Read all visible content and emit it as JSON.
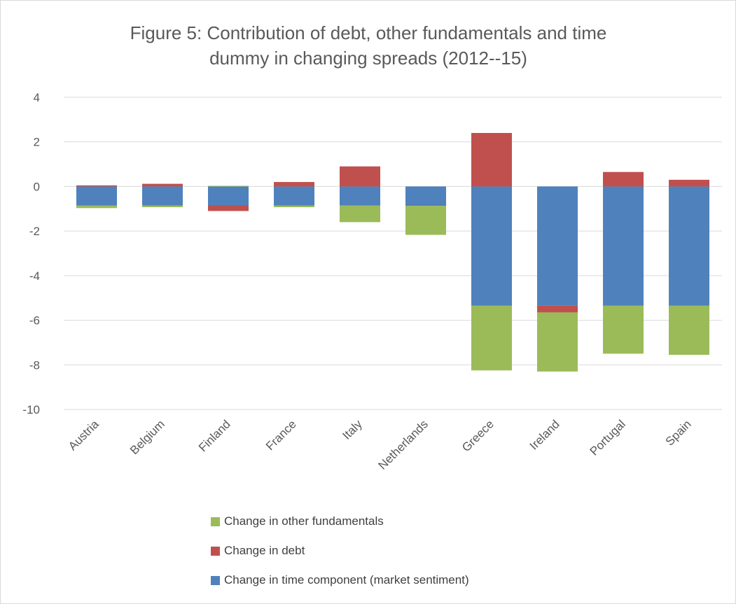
{
  "chart_data": {
    "type": "bar",
    "stacked": true,
    "title": "Figure 5: Contribution of debt, other fundamentals and time dummy in changing spreads (2012--15)",
    "title_lines": [
      "Figure 5: Contribution of debt, other fundamentals and time",
      "dummy in changing spreads (2012--15)"
    ],
    "categories": [
      "Austria",
      "Belgium",
      "Finland",
      "France",
      "Italy",
      "Netherlands",
      "Greece",
      "Ireland",
      "Portugal",
      "Spain"
    ],
    "series": [
      {
        "name": "Change in time component (market sentiment)",
        "color": "#4f81bd",
        "values": [
          -0.85,
          -0.85,
          -0.85,
          -0.85,
          -0.85,
          -0.85,
          -5.35,
          -5.35,
          -5.35,
          -5.35
        ]
      },
      {
        "name": "Change in debt",
        "color": "#c0504d",
        "values": [
          0.05,
          0.12,
          -0.25,
          0.2,
          0.9,
          -0.02,
          2.4,
          -0.3,
          0.65,
          0.3
        ]
      },
      {
        "name": "Change in other fundamentals",
        "color": "#9bbb59",
        "values": [
          -0.12,
          -0.08,
          0.03,
          -0.08,
          -0.75,
          -1.3,
          -2.9,
          -2.65,
          -2.15,
          -2.2
        ]
      }
    ],
    "ylim": [
      -10,
      4
    ],
    "yticks": [
      4,
      2,
      0,
      -2,
      -4,
      -6,
      -8,
      -10
    ],
    "grid": true,
    "legend_position": "bottom",
    "legend_order": [
      "Change in other fundamentals",
      "Change in debt",
      "Change in time component (market sentiment)"
    ]
  }
}
